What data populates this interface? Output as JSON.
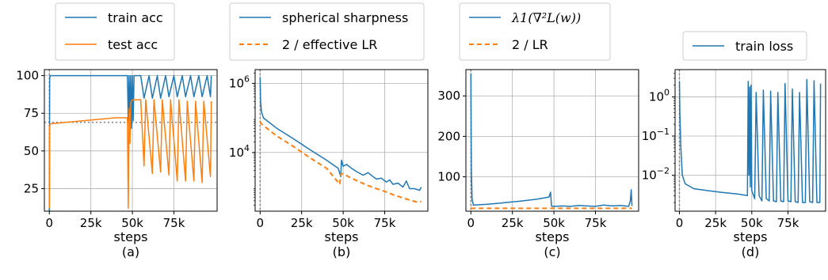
{
  "colors": {
    "blue": "#1f77b4",
    "orange": "#ff7f0e",
    "grid": "#b0b0b0",
    "ref": "#808080"
  },
  "chart_data": [
    {
      "type": "line",
      "caption": "(a)",
      "xlabel": "steps",
      "ylabel": "",
      "xlim": [
        -3000,
        101000
      ],
      "ylim": [
        10,
        104
      ],
      "xticks": [
        0,
        25000,
        50000,
        75000
      ],
      "xtick_labels": [
        "0",
        "25k",
        "50k",
        "75k"
      ],
      "yticks": [
        25,
        50,
        75,
        100
      ],
      "ytick_labels": [
        "25",
        "50",
        "75",
        "100"
      ],
      "yscale": "linear",
      "grid": true,
      "legend_position": "above",
      "reference_lines": {
        "vertical_x": 0,
        "horizontal_y": 69
      },
      "series": [
        {
          "name": "train acc",
          "color": "blue",
          "x": [
            0,
            200,
            500,
            47000,
            47500,
            48000,
            48500,
            49000,
            49500,
            50000,
            50500,
            51000,
            52000,
            55000,
            57000,
            60000,
            62000,
            65000,
            67000,
            70000,
            72000,
            75000,
            77000,
            80000,
            82000,
            85000,
            87000,
            90000,
            92000,
            95000,
            97000,
            97500
          ],
          "y": [
            10,
            98,
            100,
            100,
            70,
            100,
            75,
            100,
            65,
            100,
            70,
            100,
            100,
            100,
            85,
            100,
            85,
            100,
            85,
            100,
            86,
            100,
            86,
            100,
            86,
            100,
            86,
            100,
            86,
            100,
            86,
            100
          ]
        },
        {
          "name": "test acc",
          "color": "orange",
          "x": [
            0,
            200,
            500,
            10000,
            20000,
            30000,
            40000,
            47000,
            47500,
            48000,
            48500,
            49000,
            50000,
            51000,
            55000,
            57000,
            58000,
            62000,
            63000,
            67000,
            68000,
            72000,
            73000,
            77000,
            78000,
            82000,
            83000,
            87000,
            88000,
            92000,
            93000,
            97000,
            97500
          ],
          "y": [
            12,
            66,
            68,
            69,
            70,
            71,
            72,
            72,
            12,
            78,
            55,
            82,
            84,
            84,
            84,
            40,
            84,
            35,
            84,
            36,
            84,
            34,
            84,
            30,
            84,
            30,
            83,
            30,
            83,
            29,
            83,
            33,
            83
          ]
        }
      ]
    },
    {
      "type": "line",
      "caption": "(b)",
      "xlabel": "steps",
      "ylabel": "",
      "xlim": [
        -3000,
        101000
      ],
      "ylim": [
        200,
        2500000
      ],
      "xticks": [
        0,
        25000,
        50000,
        75000
      ],
      "xtick_labels": [
        "0",
        "25k",
        "50k",
        "75k"
      ],
      "yscale": "log",
      "yticks": [
        10000,
        1000000
      ],
      "ytick_labels": [
        "10^4",
        "10^6"
      ],
      "grid": true,
      "legend_position": "above",
      "reference_lines": {
        "vertical_x": 0
      },
      "series": [
        {
          "name": "spherical sharpness",
          "color": "blue",
          "style": "solid",
          "x": [
            0,
            300,
            800,
            2000,
            10000,
            20000,
            30000,
            40000,
            47000,
            48500,
            49000,
            50000,
            52000,
            55000,
            58000,
            62000,
            65000,
            68000,
            70000,
            73000,
            76000,
            78000,
            80000,
            83000,
            86000,
            88000,
            90000,
            93000,
            96000,
            97000
          ],
          "y": [
            1500000,
            300000,
            150000,
            100000,
            50000,
            25000,
            12000,
            6000,
            3500,
            2000,
            6000,
            4000,
            4500,
            3500,
            2800,
            2200,
            2600,
            2000,
            1700,
            1800,
            1400,
            1600,
            1200,
            1300,
            1000,
            1500,
            900,
            900,
            800,
            1000
          ]
        },
        {
          "name": "2 / effective LR",
          "color": "orange",
          "style": "dashed",
          "x": [
            0,
            500,
            2000,
            10000,
            20000,
            30000,
            40000,
            48000,
            48500,
            50000,
            55000,
            60000,
            65000,
            70000,
            75000,
            80000,
            85000,
            90000,
            95000,
            97000
          ],
          "y": [
            80000,
            70000,
            60000,
            30000,
            15000,
            7000,
            3500,
            1200,
            2400,
            2400,
            1800,
            1400,
            1100,
            900,
            750,
            600,
            500,
            420,
            360,
            380
          ]
        }
      ]
    },
    {
      "type": "line",
      "caption": "(c)",
      "xlabel": "steps",
      "ylabel": "",
      "xlim": [
        -3000,
        101000
      ],
      "ylim": [
        15,
        365
      ],
      "xticks": [
        0,
        25000,
        50000,
        75000
      ],
      "xtick_labels": [
        "0",
        "25k",
        "50k",
        "75k"
      ],
      "yticks": [
        100,
        200,
        300
      ],
      "ytick_labels": [
        "100",
        "200",
        "300"
      ],
      "yscale": "linear",
      "grid": true,
      "legend_position": "above",
      "reference_lines": {
        "vertical_x": 0
      },
      "series": [
        {
          "name": "λ1(∇²L(w))",
          "color": "blue",
          "style": "solid",
          "x": [
            0,
            300,
            700,
            1500,
            10000,
            20000,
            30000,
            40000,
            47000,
            48000,
            48500,
            49000,
            50000,
            55000,
            60000,
            65000,
            70000,
            75000,
            80000,
            85000,
            90000,
            95000,
            96000,
            96500,
            97000
          ],
          "y": [
            355,
            120,
            45,
            30,
            32,
            36,
            40,
            45,
            50,
            62,
            28,
            27,
            27,
            28,
            27,
            29,
            28,
            27,
            30,
            28,
            29,
            27,
            40,
            68,
            28
          ]
        },
        {
          "name": "2 / LR",
          "color": "orange",
          "style": "dashed",
          "x": [
            0,
            97000
          ],
          "y": [
            22,
            22
          ]
        }
      ]
    },
    {
      "type": "line",
      "caption": "(d)",
      "xlabel": "steps",
      "ylabel": "",
      "xlim": [
        -3000,
        101000
      ],
      "ylim": [
        0.0012,
        5
      ],
      "xticks": [
        0,
        25000,
        50000,
        75000
      ],
      "xtick_labels": [
        "0",
        "25k",
        "50k",
        "75k"
      ],
      "yscale": "log",
      "yticks": [
        0.01,
        0.1,
        1
      ],
      "ytick_labels": [
        "10^-2",
        "10^-1",
        "10^0"
      ],
      "grid": true,
      "legend_position": "above",
      "reference_lines": {
        "vertical_x": 0
      },
      "series": [
        {
          "name": "train loss",
          "color": "blue",
          "x": [
            0,
            300,
            1000,
            2000,
            4000,
            10000,
            20000,
            30000,
            40000,
            47000,
            47500,
            48000,
            48500,
            49000,
            49500,
            50000,
            52000,
            53000,
            55000,
            57000,
            58000,
            60000,
            62000,
            63000,
            65000,
            67000,
            68000,
            70000,
            72000,
            73000,
            75000,
            77000,
            78000,
            80000,
            82000,
            83000,
            85000,
            87000,
            88000,
            90000,
            92000,
            93000,
            95000,
            97000,
            97500
          ],
          "y": [
            2.5,
            0.4,
            0.05,
            0.01,
            0.006,
            0.0045,
            0.004,
            0.0036,
            0.0033,
            0.003,
            2.5,
            0.01,
            1.8,
            0.005,
            2.0,
            0.004,
            0.0025,
            1.3,
            0.003,
            0.0022,
            1.5,
            0.0025,
            0.0022,
            1.4,
            0.0022,
            0.0021,
            1.3,
            0.0022,
            0.0021,
            2.2,
            0.0022,
            0.0021,
            1.6,
            0.0021,
            0.002,
            1.3,
            0.002,
            0.002,
            2.8,
            0.0021,
            0.002,
            2.6,
            0.002,
            0.002,
            2.2
          ]
        }
      ]
    }
  ]
}
